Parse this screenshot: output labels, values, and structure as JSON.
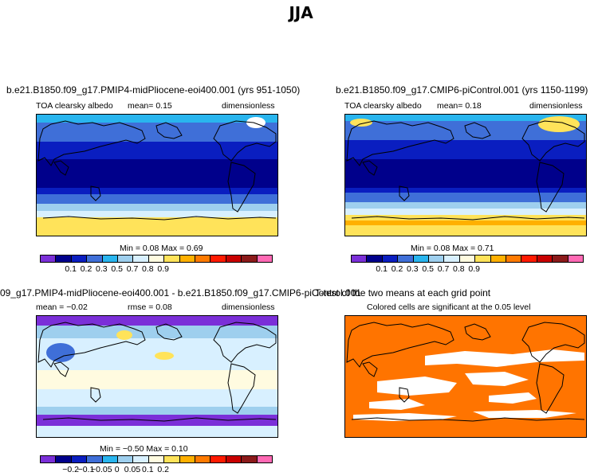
{
  "title": "JJA",
  "panels": {
    "p1": {
      "title": "b.e21.B1850.f09_g17.PMIP4-midPliocene-eoi400.001 (yrs 951-1050)",
      "variable": "TOA clearsky  albedo",
      "mean": "mean=    0.15",
      "units": "dimensionless",
      "minmax": "Min =    0.08  Max =     0.69"
    },
    "p2": {
      "title": "b.e21.B1850.f09_g17.CMIP6-piControl.001 (yrs 1150-1199)",
      "variable": "TOA clearsky  albedo",
      "mean": "mean=    0.18",
      "units": "dimensionless",
      "minmax": "Min =    0.08  Max =     0.71"
    },
    "p3": {
      "title": "09_g17.PMIP4-midPliocene-eoi400.001 - b.e21.B1850.f09_g17.CMIP6-piControl.001",
      "mean": "mean =   −0.02",
      "rmse": "rmse =    0.08",
      "units": "dimensionless",
      "minmax": "Min =   −0.50  Max =     0.10"
    },
    "p4": {
      "title": "T-test of the two means at each grid point",
      "subtitle": "Colored cells are significant at the 0.05 level"
    }
  },
  "colorbar_abs": {
    "colors": [
      "#7b2fd8",
      "#00008b",
      "#0a1ec0",
      "#3f6fd8",
      "#29b5ee",
      "#9ecfee",
      "#d8f0ff",
      "#fffbe0",
      "#ffe35a",
      "#ffb000",
      "#ff7a00",
      "#ff1a00",
      "#c80000",
      "#8b1a1a",
      "#ff69b4"
    ],
    "labels": [
      "0.1",
      "0.2",
      "0.3",
      "0.5",
      "0.7",
      "0.8",
      "0.9"
    ]
  },
  "colorbar_diff": {
    "colors": [
      "#7b2fd8",
      "#00008b",
      "#0a1ec0",
      "#3f6fd8",
      "#29b5ee",
      "#9ecfee",
      "#d8f0ff",
      "#fffbe0",
      "#ffe35a",
      "#ffb000",
      "#ff7a00",
      "#ff1a00",
      "#c80000",
      "#8b1a1a",
      "#ff69b4"
    ],
    "labels": [
      "−0.2",
      "−0.1",
      "−0.05",
      "0",
      "0.05",
      "0.1",
      "0.2"
    ]
  },
  "ttest_color": "#ff7400"
}
